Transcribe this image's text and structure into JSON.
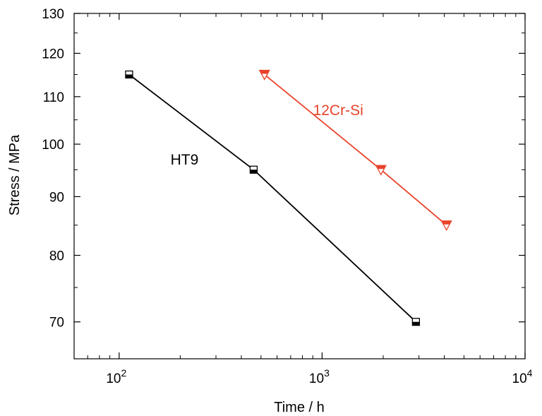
{
  "chart_data": {
    "type": "line",
    "xscale": "log",
    "yscale": "log",
    "xlim": [
      60,
      10000
    ],
    "ylim": [
      65,
      130
    ],
    "xlabel": "Time / h",
    "ylabel": "Stress / MPa",
    "x_ticks": [
      {
        "value": 100,
        "base": "10",
        "exp": "2"
      },
      {
        "value": 1000,
        "base": "10",
        "exp": "3"
      },
      {
        "value": 10000,
        "base": "10",
        "exp": "4"
      }
    ],
    "y_ticks": [
      {
        "value": 70,
        "label": "70"
      },
      {
        "value": 80,
        "label": "80"
      },
      {
        "value": 90,
        "label": "90"
      },
      {
        "value": 100,
        "label": "100"
      },
      {
        "value": 110,
        "label": "110"
      },
      {
        "value": 120,
        "label": "120"
      },
      {
        "value": 130,
        "label": "130"
      }
    ],
    "grid": false,
    "series": [
      {
        "name": "HT9",
        "color": "#000000",
        "marker": "half-filled-square",
        "points": [
          {
            "x": 112,
            "y": 115
          },
          {
            "x": 460,
            "y": 95
          },
          {
            "x": 2900,
            "y": 70
          }
        ],
        "label": {
          "text": "HT9",
          "x": 210,
          "y": 96
        }
      },
      {
        "name": "12Cr-Si",
        "color": "#e8432a",
        "marker": "half-filled-down-triangle",
        "points": [
          {
            "x": 520,
            "y": 115
          },
          {
            "x": 1950,
            "y": 95
          },
          {
            "x": 4100,
            "y": 85
          }
        ],
        "label": {
          "text": "12Cr-Si",
          "x": 1200,
          "y": 106
        }
      }
    ]
  }
}
